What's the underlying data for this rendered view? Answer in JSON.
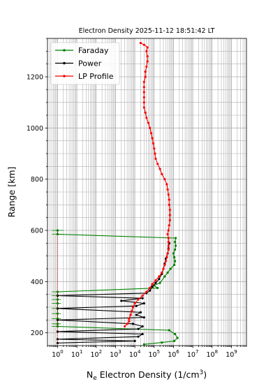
{
  "chart_data": {
    "type": "line",
    "title": "Electron Density 2025-11-12 18:51:42 LT",
    "xlabel": "N_e Electron Density (1/cm³)",
    "xlabel_main": "N",
    "xlabel_sub": "e",
    "xlabel_rest": " Electron Density (1/cm",
    "xlabel_sup": "3",
    "xlabel_close": ")",
    "ylabel": "Range [km]",
    "x_scale": "log",
    "xlim": [
      0.3,
      6000000000
    ],
    "ylim": [
      150,
      1350
    ],
    "x_ticks": [
      1,
      10,
      100,
      1000,
      10000,
      100000,
      1000000,
      10000000,
      100000000,
      1000000000
    ],
    "x_tick_exponents": [
      "0",
      "1",
      "2",
      "3",
      "4",
      "5",
      "6",
      "7",
      "8",
      "9"
    ],
    "x_tick_base": "10",
    "y_ticks": [
      200,
      400,
      600,
      800,
      1000,
      1200
    ],
    "y_tick_labels": [
      "200",
      "400",
      "600",
      "800",
      "1000",
      "1200"
    ],
    "grid": true,
    "legend_position": "top-left",
    "series": [
      {
        "name": "Faraday",
        "color": "#008000",
        "marker": "dot",
        "errorbars": true,
        "points": [
          [
            30000,
            155
          ],
          [
            250000,
            162
          ],
          [
            1100000,
            168
          ],
          [
            1600000,
            180
          ],
          [
            1200000,
            195
          ],
          [
            600000,
            210
          ],
          [
            1,
            225
          ],
          [
            1,
            235
          ],
          [
            1,
            255
          ],
          [
            1,
            275
          ],
          [
            1,
            295
          ],
          [
            1,
            315
          ],
          [
            1,
            330
          ],
          [
            1,
            345
          ],
          [
            1,
            360
          ],
          [
            150000,
            375
          ],
          [
            100000,
            385
          ],
          [
            200000,
            395
          ],
          [
            350000,
            420
          ],
          [
            500000,
            435
          ],
          [
            700000,
            450
          ],
          [
            1100000,
            465
          ],
          [
            1200000,
            480
          ],
          [
            1100000,
            495
          ],
          [
            1000000,
            510
          ],
          [
            1200000,
            525
          ],
          [
            1300000,
            540
          ],
          [
            1200000,
            555
          ],
          [
            1300000,
            570
          ],
          [
            1,
            585
          ],
          [
            1,
            600
          ]
        ],
        "errors": [
          [
            0,
            0
          ],
          [
            0,
            0
          ],
          [
            0,
            0
          ],
          [
            0,
            0
          ],
          [
            0,
            0
          ],
          [
            0,
            0
          ],
          [
            0.5,
            1.5
          ],
          [
            0.5,
            1.5
          ],
          [
            0.5,
            1.5
          ],
          [
            0.5,
            1.5
          ],
          [
            0.5,
            1.5
          ],
          [
            0.5,
            1.5
          ],
          [
            0.5,
            1.5
          ],
          [
            0.5,
            1.5
          ],
          [
            0.5,
            1.5
          ],
          [
            0,
            0
          ],
          [
            0,
            0
          ],
          [
            0,
            0
          ],
          [
            0,
            0
          ],
          [
            0,
            0
          ],
          [
            0,
            0
          ],
          [
            0,
            0
          ],
          [
            0,
            0
          ],
          [
            0,
            0
          ],
          [
            0,
            0
          ],
          [
            0,
            0
          ],
          [
            0,
            0
          ],
          [
            0,
            0
          ],
          [
            0,
            0
          ],
          [
            0.5,
            2
          ],
          [
            0.5,
            2
          ]
        ]
      },
      {
        "name": "Power",
        "color": "#000000",
        "marker": "dot",
        "errorbars": false,
        "points": [
          [
            1,
            160
          ],
          [
            10000,
            168
          ],
          [
            1,
            175
          ],
          [
            15000,
            185
          ],
          [
            25000,
            195
          ],
          [
            1,
            205
          ],
          [
            15000,
            215
          ],
          [
            25000,
            225
          ],
          [
            8000,
            235
          ],
          [
            1,
            250
          ],
          [
            30000,
            260
          ],
          [
            12000,
            270
          ],
          [
            20000,
            280
          ],
          [
            1,
            295
          ],
          [
            12000,
            305
          ],
          [
            30000,
            315
          ],
          [
            2000,
            325
          ],
          [
            25000,
            335
          ],
          [
            1,
            345
          ],
          [
            40000,
            355
          ],
          [
            60000,
            365
          ],
          [
            80000,
            380
          ],
          [
            120000,
            395
          ],
          [
            180000,
            410
          ],
          [
            250000,
            430
          ],
          [
            300000,
            450
          ],
          [
            350000,
            470
          ],
          [
            400000,
            490
          ],
          [
            500000,
            510
          ],
          [
            550000,
            530
          ],
          [
            600000,
            550
          ]
        ]
      },
      {
        "name": "LP Profile",
        "color": "#ff0000",
        "marker": "dot",
        "errorbars": true,
        "points": [
          [
            3000,
            225
          ],
          [
            4000,
            235
          ],
          [
            5000,
            245
          ],
          [
            5000,
            255
          ],
          [
            6000,
            270
          ],
          [
            7000,
            285
          ],
          [
            8000,
            300
          ],
          [
            10000,
            315
          ],
          [
            15000,
            330
          ],
          [
            25000,
            345
          ],
          [
            40000,
            360
          ],
          [
            60000,
            375
          ],
          [
            80000,
            390
          ],
          [
            120000,
            405
          ],
          [
            180000,
            420
          ],
          [
            250000,
            435
          ],
          [
            300000,
            450
          ],
          [
            350000,
            465
          ],
          [
            400000,
            480
          ],
          [
            450000,
            495
          ],
          [
            500000,
            510
          ],
          [
            550000,
            525
          ],
          [
            550000,
            540
          ],
          [
            550000,
            555
          ],
          [
            550000,
            570
          ],
          [
            500000,
            585
          ],
          [
            550000,
            600
          ],
          [
            600000,
            620
          ],
          [
            650000,
            640
          ],
          [
            650000,
            660
          ],
          [
            650000,
            680
          ],
          [
            600000,
            700
          ],
          [
            600000,
            720
          ],
          [
            550000,
            740
          ],
          [
            500000,
            760
          ],
          [
            450000,
            780
          ],
          [
            350000,
            800
          ],
          [
            250000,
            820
          ],
          [
            200000,
            840
          ],
          [
            150000,
            860
          ],
          [
            120000,
            880
          ],
          [
            110000,
            900
          ],
          [
            100000,
            920
          ],
          [
            90000,
            940
          ],
          [
            80000,
            960
          ],
          [
            70000,
            980
          ],
          [
            60000,
            1000
          ],
          [
            50000,
            1020
          ],
          [
            40000,
            1040
          ],
          [
            35000,
            1060
          ],
          [
            30000,
            1080
          ],
          [
            30000,
            1100
          ],
          [
            30000,
            1120
          ],
          [
            30000,
            1140
          ],
          [
            30000,
            1160
          ],
          [
            30000,
            1180
          ],
          [
            35000,
            1200
          ],
          [
            35000,
            1220
          ],
          [
            40000,
            1240
          ],
          [
            45000,
            1260
          ],
          [
            45000,
            1280
          ],
          [
            40000,
            1300
          ],
          [
            45000,
            1315
          ],
          [
            30000,
            1325
          ],
          [
            20000,
            1332
          ]
        ]
      }
    ]
  }
}
